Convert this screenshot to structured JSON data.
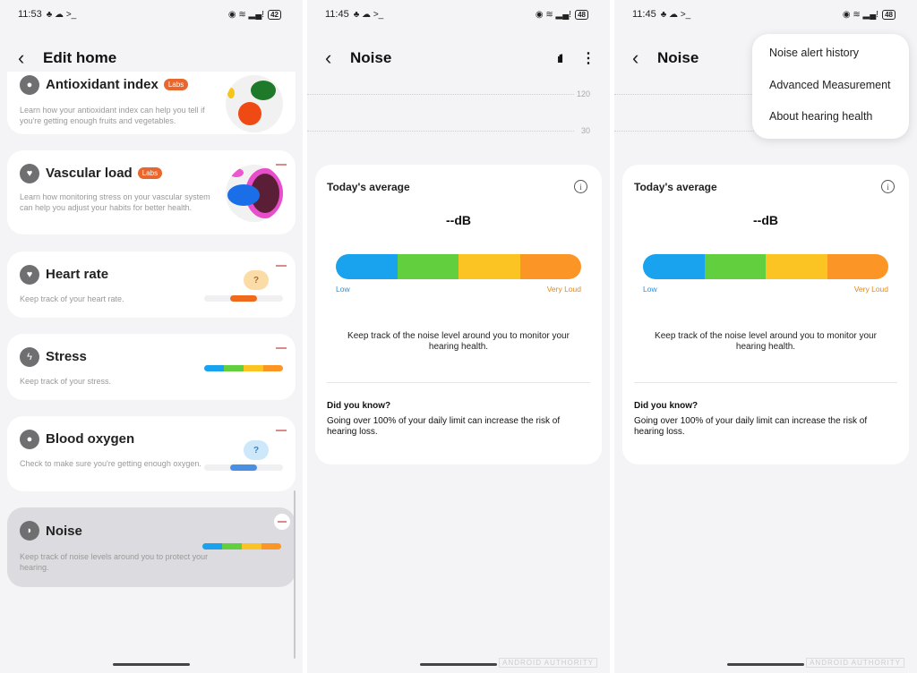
{
  "colors": {
    "blue": "#19a3ee",
    "green": "#62d03e",
    "yellow": "#fbc423",
    "orange": "#fb9626",
    "labs": "#e9662d"
  },
  "edit_home": {
    "status": {
      "time": "11:53",
      "battery": "42"
    },
    "title": "Edit home",
    "cards": [
      {
        "title": "Antioxidant index",
        "badge": "Labs",
        "desc": "Learn how your antioxidant index can help you tell if you're getting enough fruits and vegetables.",
        "icon": "antioxidant-icon"
      },
      {
        "title": "Vascular load",
        "badge": "Labs",
        "desc": "Learn how monitoring stress on your vascular system can help you adjust your habits for better health.",
        "icon": "vascular-heart-icon"
      },
      {
        "title": "Heart rate",
        "desc": "Keep track of your heart rate.",
        "icon": "heart-icon",
        "bubble": "?"
      },
      {
        "title": "Stress",
        "desc": "Keep track of your stress.",
        "icon": "lightning-icon"
      },
      {
        "title": "Blood oxygen",
        "desc": "Check to make sure you're getting enough oxygen.",
        "icon": "drop-icon",
        "bubble": "?"
      },
      {
        "title": "Noise",
        "desc": "Keep track of noise levels around you to protect your hearing.",
        "icon": "ear-icon",
        "selected": true
      }
    ]
  },
  "noise": {
    "status": {
      "time": "11:45",
      "battery": "48"
    },
    "title": "Noise",
    "chart_ticks": [
      "120",
      "30"
    ],
    "card_title": "Today's average",
    "value": "--dB",
    "low": "Low",
    "very_loud": "Very Loud",
    "keep": "Keep track of the noise level around you to monitor your hearing health.",
    "did_you_know": "Did you know?",
    "did_you_know_body": "Going over 100% of your daily limit can increase the risk of hearing loss."
  },
  "menu": {
    "items": [
      "Noise alert history",
      "Advanced Measurement",
      "About hearing health"
    ]
  }
}
